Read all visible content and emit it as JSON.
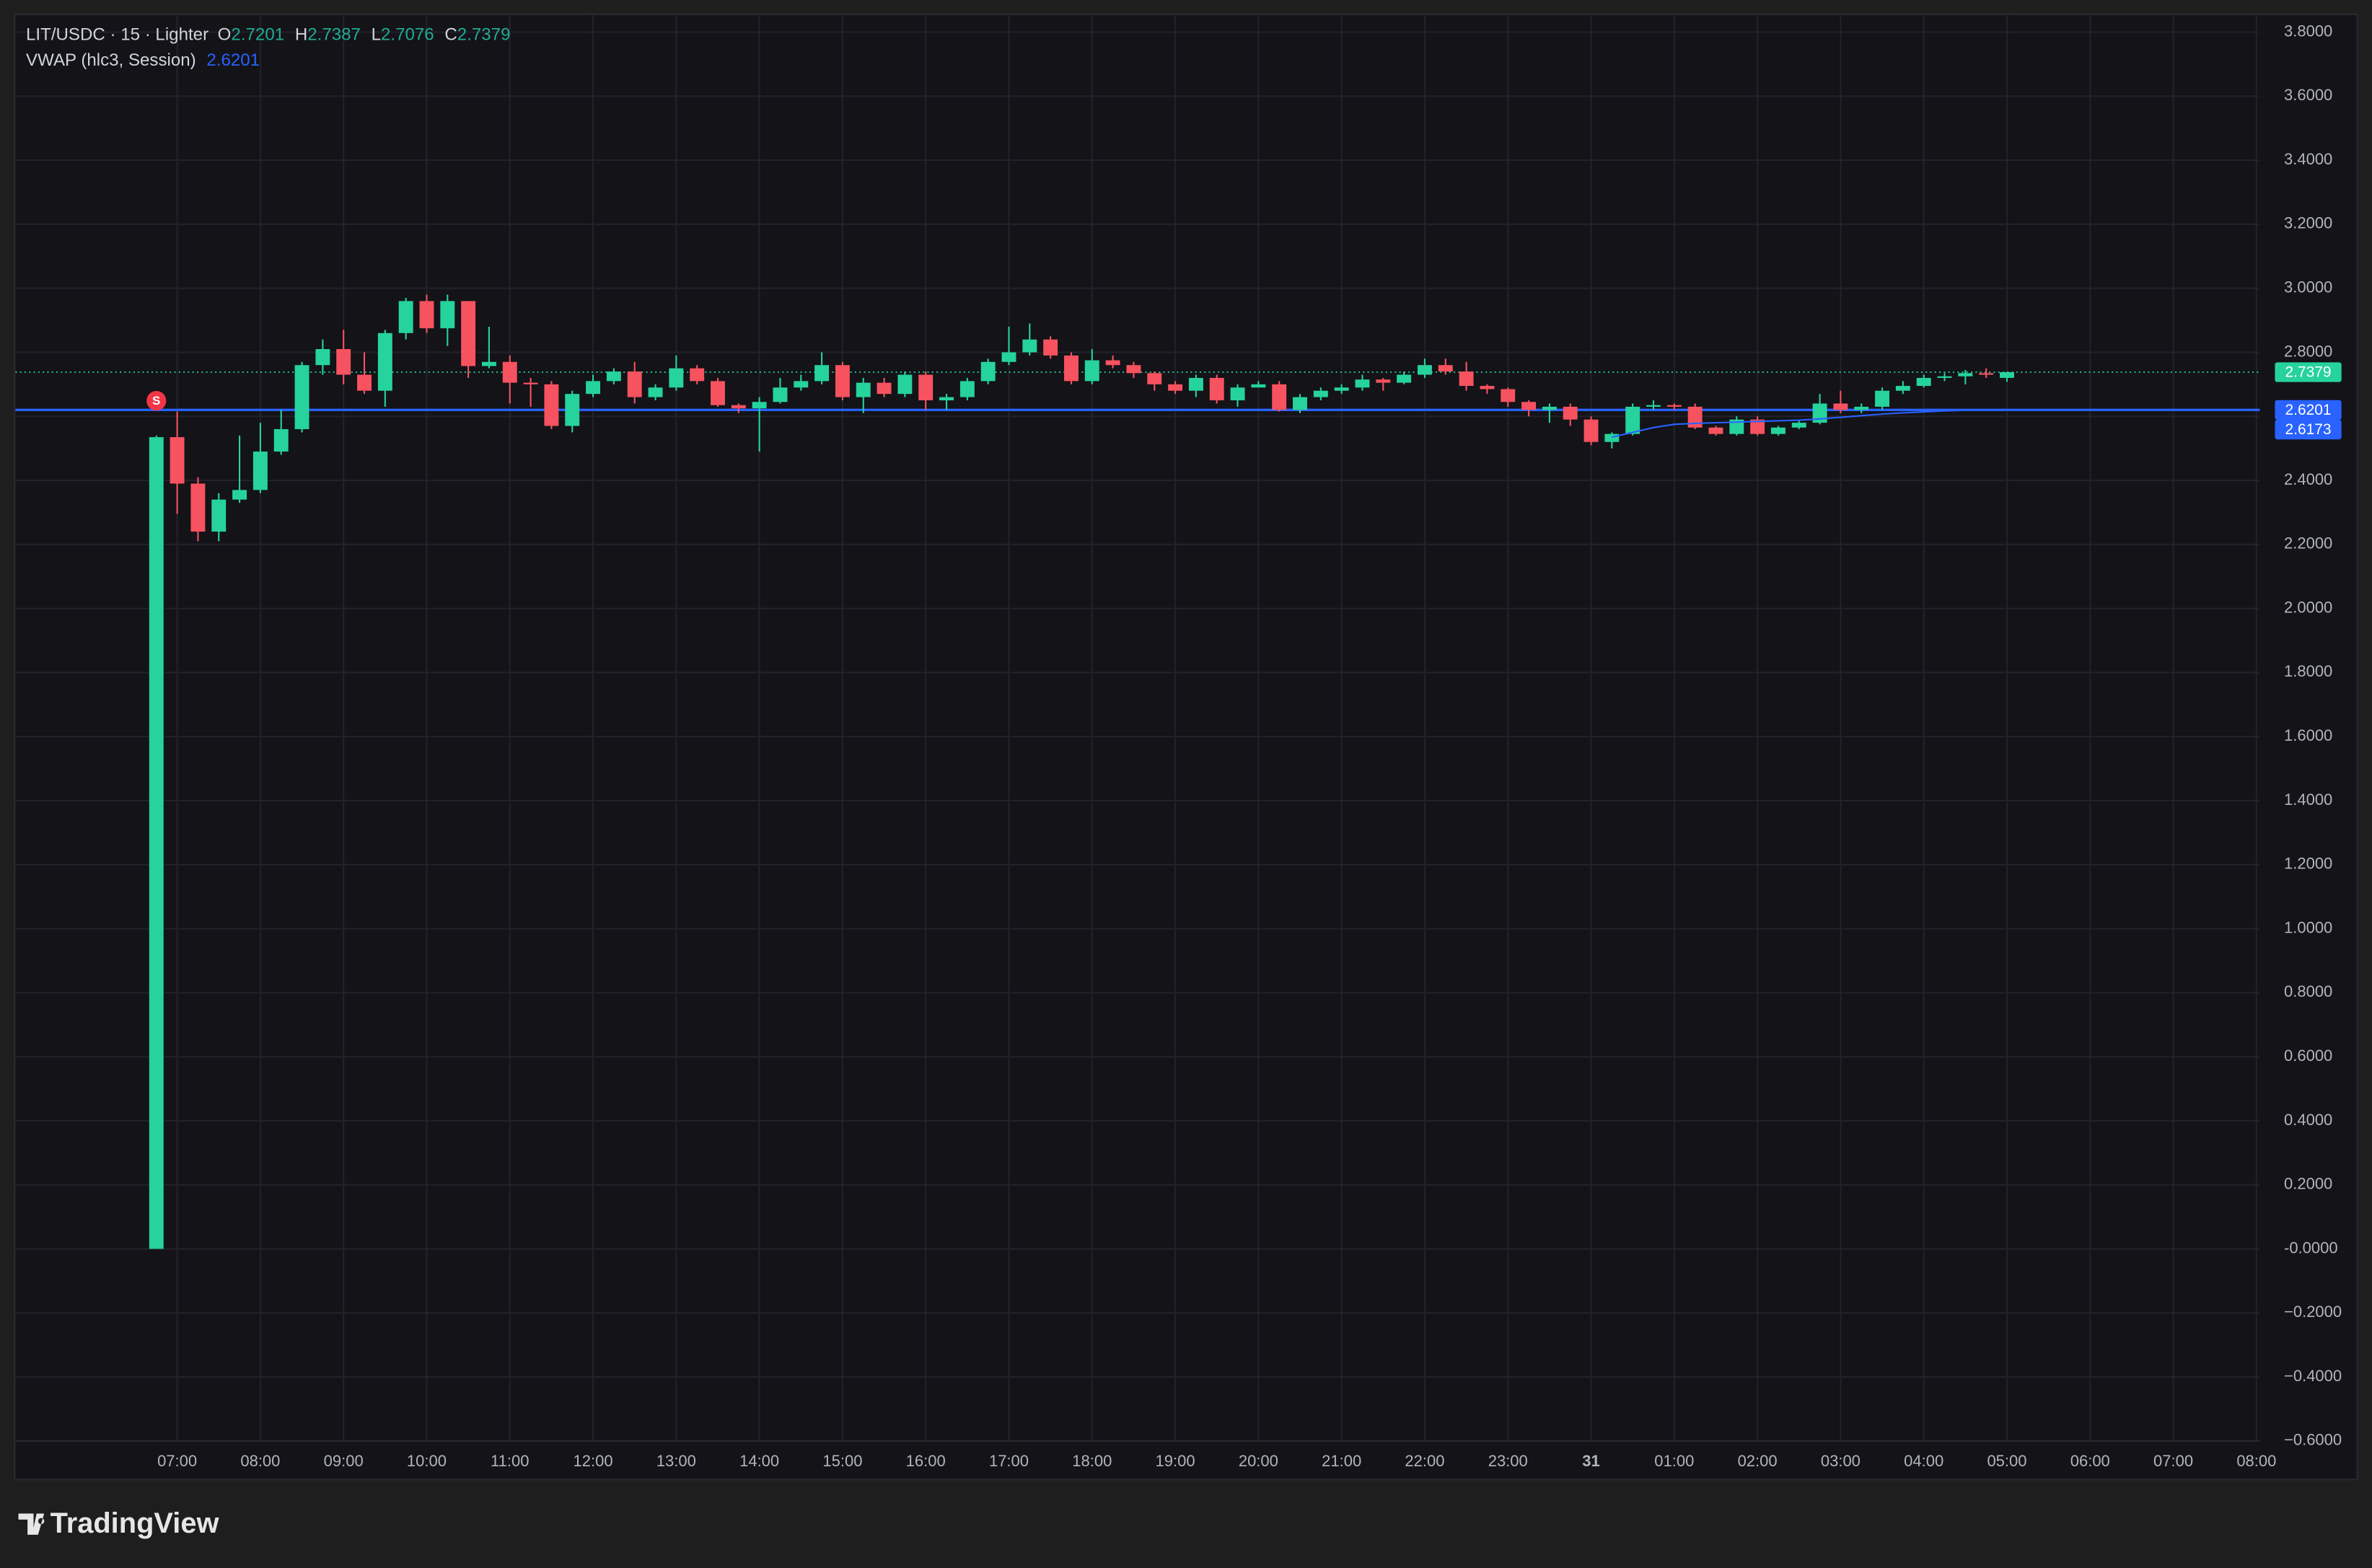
{
  "chart_data": {
    "type": "candlestick",
    "symbol": "LIT/USDC · 15 · Lighter",
    "ohlc_labels": [
      "O",
      "H",
      "L",
      "C"
    ],
    "ohlc_values": [
      2.7201,
      2.7387,
      2.7076,
      2.7379
    ],
    "indicator": "VWAP (hlc3, Session)",
    "indicator_value": 2.6201,
    "branding": "TradingView",
    "up_color": "#26d39c",
    "down_color": "#f7525f",
    "grid": true,
    "x": [
      6.75,
      7,
      7.25,
      7.5,
      7.75,
      8,
      8.25,
      8.5,
      8.75,
      9,
      9.25,
      9.5,
      9.75,
      10,
      10.25,
      10.5,
      10.75,
      11,
      11.25,
      11.5,
      11.75,
      12,
      12.25,
      12.5,
      12.75,
      13,
      13.25,
      13.5,
      13.75,
      14,
      14.25,
      14.5,
      14.75,
      15,
      15.25,
      15.5,
      15.75,
      16,
      16.25,
      16.5,
      16.75,
      17,
      17.25,
      17.5,
      17.75,
      18,
      18.25,
      18.5,
      18.75,
      19,
      19.25,
      19.5,
      19.75,
      20,
      20.25,
      20.5,
      20.75,
      21,
      21.25,
      21.5,
      21.75,
      22,
      22.25,
      22.5,
      22.75,
      23,
      23.25,
      23.5,
      23.75,
      24,
      24.25,
      24.5,
      24.75,
      25,
      25.25,
      25.5,
      25.75,
      26,
      26.25,
      26.5,
      26.75,
      27,
      27.25,
      27.5,
      27.75,
      28,
      28.25,
      28.5,
      28.75,
      29
    ],
    "open": [
      0,
      2.535,
      2.39,
      2.24,
      2.34,
      2.37,
      2.49,
      2.56,
      2.76,
      2.81,
      2.73,
      2.68,
      2.86,
      2.96,
      2.875,
      2.96,
      2.757,
      2.77,
      2.705,
      2.7,
      2.57,
      2.67,
      2.71,
      2.74,
      2.66,
      2.69,
      2.75,
      2.71,
      2.635,
      2.625,
      2.645,
      2.69,
      2.71,
      2.76,
      2.66,
      2.705,
      2.67,
      2.73,
      2.65,
      2.66,
      2.71,
      2.77,
      2.8,
      2.84,
      2.79,
      2.71,
      2.775,
      2.76,
      2.735,
      2.7,
      2.68,
      2.72,
      2.65,
      2.69,
      2.7,
      2.62,
      2.66,
      2.68,
      2.69,
      2.715,
      2.705,
      2.73,
      2.76,
      2.74,
      2.695,
      2.685,
      2.645,
      2.62,
      2.63,
      2.59,
      2.52,
      2.545,
      2.63,
      2.635,
      2.63,
      2.565,
      2.545,
      2.59,
      2.545,
      2.565,
      2.58,
      2.64,
      2.62,
      2.63,
      2.68,
      2.695,
      2.72,
      2.725,
      2.735,
      2.7201
    ],
    "high": [
      2.54,
      2.615,
      2.41,
      2.36,
      2.54,
      2.58,
      2.62,
      2.77,
      2.84,
      2.87,
      2.8,
      2.87,
      2.97,
      2.98,
      2.98,
      2.96,
      2.88,
      2.79,
      2.72,
      2.71,
      2.68,
      2.73,
      2.75,
      2.77,
      2.7,
      2.79,
      2.76,
      2.72,
      2.64,
      2.66,
      2.72,
      2.73,
      2.8,
      2.77,
      2.72,
      2.72,
      2.74,
      2.74,
      2.67,
      2.72,
      2.78,
      2.88,
      2.89,
      2.85,
      2.8,
      2.81,
      2.79,
      2.77,
      2.74,
      2.71,
      2.73,
      2.73,
      2.7,
      2.71,
      2.71,
      2.67,
      2.69,
      2.7,
      2.73,
      2.72,
      2.74,
      2.78,
      2.78,
      2.77,
      2.7,
      2.69,
      2.65,
      2.64,
      2.64,
      2.6,
      2.55,
      2.64,
      2.65,
      2.64,
      2.64,
      2.57,
      2.6,
      2.6,
      2.57,
      2.59,
      2.67,
      2.68,
      2.64,
      2.69,
      2.71,
      2.73,
      2.735,
      2.745,
      2.75,
      2.7387
    ],
    "low": [
      0,
      2.295,
      2.21,
      2.21,
      2.33,
      2.36,
      2.48,
      2.55,
      2.73,
      2.7,
      2.67,
      2.63,
      2.84,
      2.86,
      2.82,
      2.72,
      2.75,
      2.64,
      2.63,
      2.56,
      2.55,
      2.66,
      2.7,
      2.64,
      2.65,
      2.68,
      2.7,
      2.63,
      2.61,
      2.49,
      2.64,
      2.68,
      2.7,
      2.65,
      2.61,
      2.66,
      2.66,
      2.62,
      2.62,
      2.65,
      2.7,
      2.76,
      2.79,
      2.78,
      2.7,
      2.7,
      2.75,
      2.72,
      2.68,
      2.67,
      2.66,
      2.64,
      2.63,
      2.69,
      2.615,
      2.61,
      2.65,
      2.67,
      2.68,
      2.68,
      2.7,
      2.72,
      2.73,
      2.68,
      2.67,
      2.63,
      2.6,
      2.58,
      2.57,
      2.51,
      2.5,
      2.54,
      2.62,
      2.62,
      2.56,
      2.54,
      2.54,
      2.54,
      2.54,
      2.56,
      2.575,
      2.61,
      2.61,
      2.62,
      2.67,
      2.69,
      2.71,
      2.7,
      2.72,
      2.7076
    ],
    "close": [
      2.535,
      2.39,
      2.24,
      2.34,
      2.37,
      2.49,
      2.56,
      2.76,
      2.81,
      2.73,
      2.68,
      2.86,
      2.96,
      2.875,
      2.96,
      2.757,
      2.77,
      2.705,
      2.7,
      2.57,
      2.67,
      2.71,
      2.74,
      2.66,
      2.69,
      2.75,
      2.71,
      2.635,
      2.625,
      2.645,
      2.69,
      2.71,
      2.76,
      2.66,
      2.705,
      2.67,
      2.73,
      2.65,
      2.66,
      2.71,
      2.77,
      2.8,
      2.84,
      2.79,
      2.71,
      2.775,
      2.76,
      2.735,
      2.7,
      2.68,
      2.72,
      2.65,
      2.69,
      2.7,
      2.62,
      2.66,
      2.68,
      2.69,
      2.715,
      2.705,
      2.73,
      2.76,
      2.74,
      2.695,
      2.685,
      2.645,
      2.62,
      2.63,
      2.59,
      2.52,
      2.545,
      2.63,
      2.635,
      2.63,
      2.565,
      2.545,
      2.59,
      2.545,
      2.565,
      2.58,
      2.64,
      2.62,
      2.63,
      2.68,
      2.695,
      2.72,
      2.725,
      2.735,
      2.73,
      2.7379
    ],
    "vwap": {
      "color": "#2962ff",
      "values": [
        null,
        null,
        null,
        null,
        null,
        null,
        null,
        null,
        null,
        null,
        null,
        null,
        null,
        null,
        null,
        null,
        null,
        null,
        null,
        null,
        null,
        null,
        null,
        null,
        null,
        null,
        null,
        null,
        null,
        null,
        null,
        null,
        null,
        null,
        null,
        null,
        null,
        null,
        null,
        null,
        null,
        null,
        null,
        null,
        null,
        null,
        null,
        null,
        null,
        null,
        null,
        null,
        null,
        null,
        null,
        null,
        null,
        null,
        null,
        null,
        null,
        null,
        null,
        null,
        null,
        null,
        null,
        null,
        null,
        null,
        2.535,
        2.55,
        2.565,
        2.575,
        2.578,
        2.58,
        2.582,
        2.584,
        2.586,
        2.588,
        2.592,
        2.597,
        2.602,
        2.607,
        2.611,
        2.614,
        2.617,
        2.619,
        2.62,
        2.6201
      ]
    },
    "hline": {
      "value": 2.6201,
      "color": "#2962ff"
    },
    "last_price_line": {
      "value": 2.7379,
      "color": "#26d39c"
    },
    "price_labels": [
      {
        "value": 2.7379,
        "color": "#26d39c"
      },
      {
        "value": 2.6201,
        "color": "#2962ff"
      },
      {
        "value": 2.6173,
        "color": "#2962ff"
      }
    ],
    "signal": {
      "x": 6.75,
      "text": "S",
      "color": "#f23645"
    },
    "xlim": [
      5.055,
      32.04
    ],
    "ylim": [
      -0.6,
      3.853
    ],
    "xticks": [
      {
        "value": 7,
        "label": "07:00"
      },
      {
        "value": 8,
        "label": "08:00"
      },
      {
        "value": 9,
        "label": "09:00"
      },
      {
        "value": 10,
        "label": "10:00"
      },
      {
        "value": 11,
        "label": "11:00"
      },
      {
        "value": 12,
        "label": "12:00"
      },
      {
        "value": 13,
        "label": "13:00"
      },
      {
        "value": 14,
        "label": "14:00"
      },
      {
        "value": 15,
        "label": "15:00"
      },
      {
        "value": 16,
        "label": "16:00"
      },
      {
        "value": 17,
        "label": "17:00"
      },
      {
        "value": 18,
        "label": "18:00"
      },
      {
        "value": 19,
        "label": "19:00"
      },
      {
        "value": 20,
        "label": "20:00"
      },
      {
        "value": 21,
        "label": "21:00"
      },
      {
        "value": 22,
        "label": "22:00"
      },
      {
        "value": 23,
        "label": "23:00"
      },
      {
        "value": 24,
        "label": "31"
      },
      {
        "value": 25,
        "label": "01:00"
      },
      {
        "value": 26,
        "label": "02:00"
      },
      {
        "value": 27,
        "label": "03:00"
      },
      {
        "value": 28,
        "label": "04:00"
      },
      {
        "value": 29,
        "label": "05:00"
      },
      {
        "value": 30,
        "label": "06:00"
      },
      {
        "value": 31,
        "label": "07:00"
      },
      {
        "value": 32,
        "label": "08:00"
      }
    ],
    "yticks": [
      {
        "value": 3.8,
        "label": "3.8000"
      },
      {
        "value": 3.6,
        "label": "3.6000"
      },
      {
        "value": 3.4,
        "label": "3.4000"
      },
      {
        "value": 3.2,
        "label": "3.2000"
      },
      {
        "value": 3.0,
        "label": "3.0000"
      },
      {
        "value": 2.8,
        "label": "2.8000"
      },
      {
        "value": 2.6,
        "label": "2.6000"
      },
      {
        "value": 2.4,
        "label": "2.4000"
      },
      {
        "value": 2.2,
        "label": "2.2000"
      },
      {
        "value": 2.0,
        "label": "2.0000"
      },
      {
        "value": 1.8,
        "label": "1.8000"
      },
      {
        "value": 1.6,
        "label": "1.6000"
      },
      {
        "value": 1.4,
        "label": "1.4000"
      },
      {
        "value": 1.2,
        "label": "1.2000"
      },
      {
        "value": 1.0,
        "label": "1.0000"
      },
      {
        "value": 0.8,
        "label": "0.8000"
      },
      {
        "value": 0.6,
        "label": "0.6000"
      },
      {
        "value": 0.4,
        "label": "0.4000"
      },
      {
        "value": 0.2,
        "label": "0.2000"
      },
      {
        "value": 0,
        "label": "-0.0000"
      },
      {
        "value": -0.2,
        "label": "−0.2000"
      },
      {
        "value": -0.4,
        "label": "−0.4000"
      },
      {
        "value": -0.6,
        "label": "−0.6000"
      }
    ]
  }
}
